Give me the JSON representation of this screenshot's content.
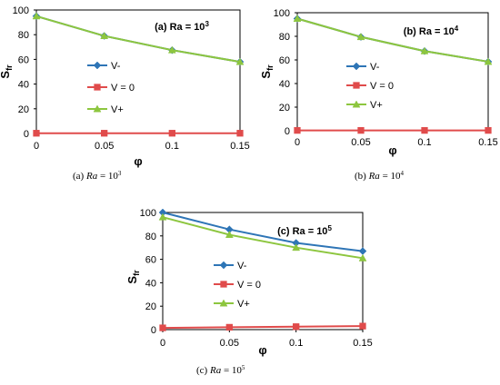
{
  "chart_data": [
    {
      "type": "line",
      "title": "(a) Ra = 10",
      "title_sup": "3",
      "caption_prefix": "(a)",
      "caption_ra": "Ra",
      "caption_eq": "= 10",
      "caption_sup": "3",
      "xlabel": "φ",
      "ylabel": "S",
      "ylabel_sub": "fr",
      "x": [
        0,
        0.05,
        0.1,
        0.15
      ],
      "x_tick_labels": [
        "0",
        "0.05",
        "0.1",
        "0.15"
      ],
      "ylim": [
        0,
        100
      ],
      "y_ticks": [
        0,
        20,
        40,
        60,
        80,
        100
      ],
      "grid": false,
      "legend": "center-left",
      "series": [
        {
          "name": "V-",
          "color": "#2E75B6",
          "marker": "diamond",
          "values": [
            95,
            79,
            67.5,
            58
          ]
        },
        {
          "name": "V = 0",
          "color": "#E04B4B",
          "marker": "square",
          "values": [
            0.2,
            0.2,
            0.2,
            0.2
          ]
        },
        {
          "name": "V+",
          "color": "#8DC63F",
          "marker": "triangle",
          "values": [
            95,
            79,
            67.5,
            58
          ]
        }
      ]
    },
    {
      "type": "line",
      "title": "(b) Ra = 10",
      "title_sup": "4",
      "caption_prefix": "(b)",
      "caption_ra": "Ra",
      "caption_eq": "= 10",
      "caption_sup": "4",
      "xlabel": "φ",
      "ylabel": "S",
      "ylabel_sub": "fr",
      "x": [
        0,
        0.05,
        0.1,
        0.15
      ],
      "x_tick_labels": [
        "0",
        "0.05",
        "0.1",
        "0.15"
      ],
      "ylim": [
        0,
        100
      ],
      "y_ticks": [
        0,
        20,
        40,
        60,
        80,
        100
      ],
      "grid": false,
      "legend": "center-right",
      "series": [
        {
          "name": "V-",
          "color": "#2E75B6",
          "marker": "diamond",
          "values": [
            95,
            79.5,
            67.5,
            58.5
          ]
        },
        {
          "name": "V = 0",
          "color": "#E04B4B",
          "marker": "square",
          "values": [
            0.3,
            0.3,
            0.3,
            0.3
          ]
        },
        {
          "name": "V+",
          "color": "#8DC63F",
          "marker": "triangle",
          "values": [
            95,
            79.5,
            67.5,
            58.5
          ]
        }
      ]
    },
    {
      "type": "line",
      "title": "(c) Ra = 10",
      "title_sup": "5",
      "caption_prefix": "(c)",
      "caption_ra": "Ra",
      "caption_eq": "= 10",
      "caption_sup": "5",
      "xlabel": "φ",
      "ylabel": "S",
      "ylabel_sub": "fr",
      "x": [
        0,
        0.05,
        0.1,
        0.15
      ],
      "x_tick_labels": [
        "0",
        "0.05",
        "0.1",
        "0.15"
      ],
      "ylim": [
        0,
        100
      ],
      "y_ticks": [
        0,
        20,
        40,
        60,
        80,
        100
      ],
      "grid": false,
      "legend": "center-left",
      "series": [
        {
          "name": "V-",
          "color": "#2E75B6",
          "marker": "diamond",
          "values": [
            100,
            85.5,
            74,
            67
          ]
        },
        {
          "name": "V = 0",
          "color": "#E04B4B",
          "marker": "square",
          "values": [
            1.5,
            2,
            2.5,
            3
          ]
        },
        {
          "name": "V+",
          "color": "#8DC63F",
          "marker": "triangle",
          "values": [
            96,
            81,
            70,
            61
          ]
        }
      ]
    }
  ]
}
